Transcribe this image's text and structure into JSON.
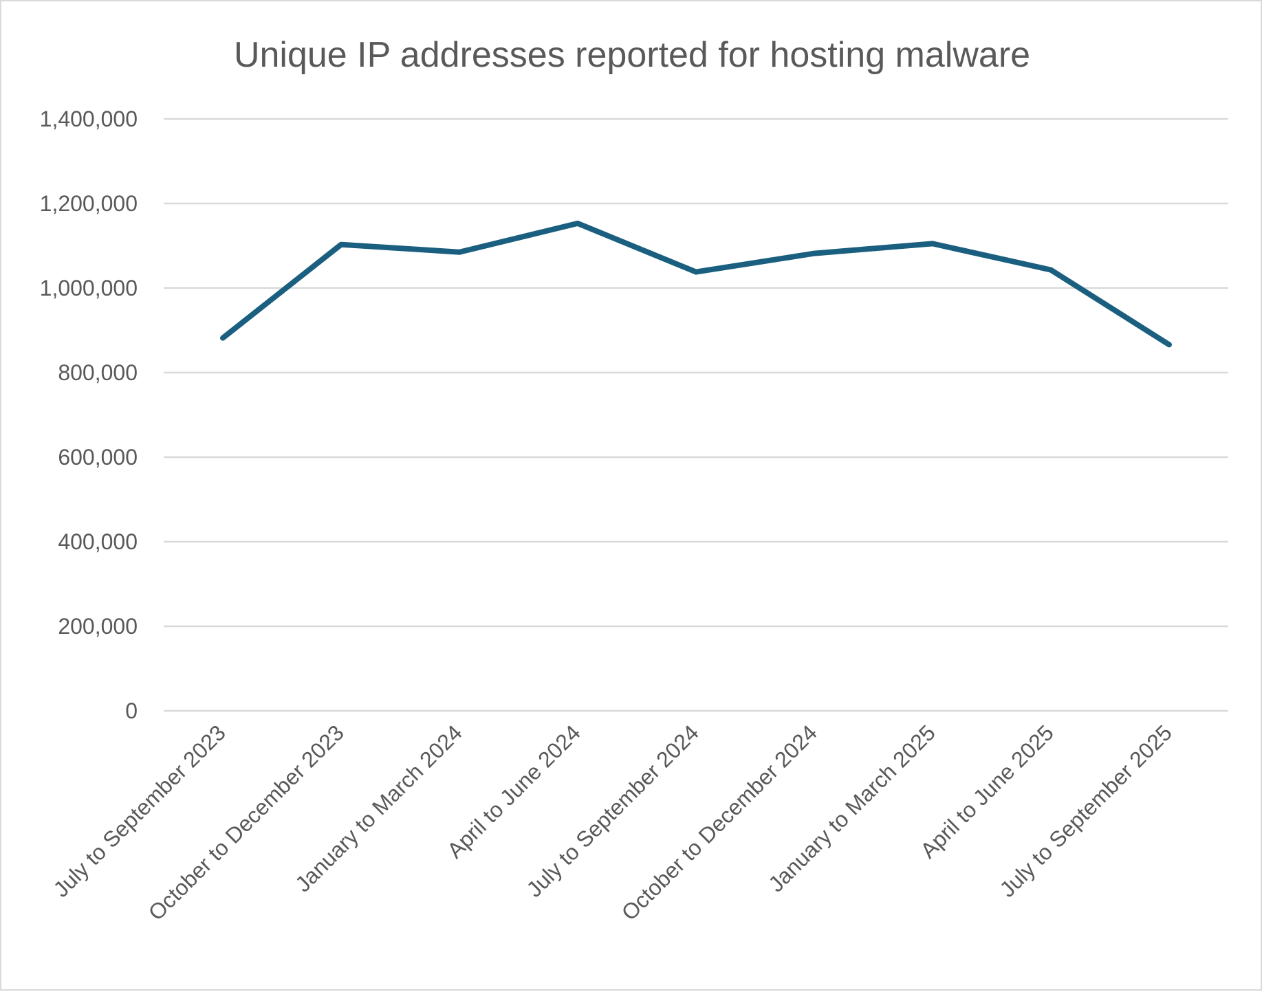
{
  "chart_data": {
    "type": "line",
    "title": "Unique IP addresses reported for hosting malware",
    "xlabel": "",
    "ylabel": "",
    "categories": [
      "July to September 2023",
      "October to December 2023",
      "January to March 2024",
      "April to June 2024",
      "July to September 2024",
      "October to December 2024",
      "January to March 2025",
      "April to June 2025",
      "July to September 2025"
    ],
    "series": [
      {
        "values": [
          882000,
          1103000,
          1085000,
          1153000,
          1038000,
          1082000,
          1105000,
          1043000,
          866000
        ],
        "color": "#1a5f7f"
      }
    ],
    "ylim": [
      0,
      1400000
    ],
    "yticks": [
      0,
      200000,
      400000,
      600000,
      800000,
      1000000,
      1200000,
      1400000
    ],
    "ytick_labels": [
      "0",
      "200,000",
      "400,000",
      "600,000",
      "800,000",
      "1,000,000",
      "1,200,000",
      "1,400,000"
    ],
    "grid": true,
    "legend": "none"
  }
}
